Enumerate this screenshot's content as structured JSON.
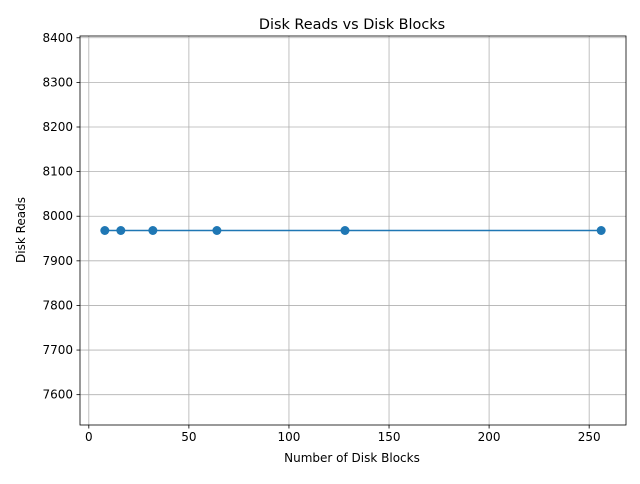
{
  "chart_data": {
    "type": "line",
    "title": "Disk Reads vs Disk Blocks",
    "xlabel": "Number of Disk Blocks",
    "ylabel": "Disk Reads",
    "x": [
      8,
      16,
      32,
      64,
      128,
      256
    ],
    "series": [
      {
        "values": [
          7968,
          7968,
          7968,
          7968,
          7968,
          7968
        ],
        "color": "#1f77b4",
        "marker": "circle"
      }
    ],
    "xlim": [
      -4.4,
      268.4
    ],
    "ylim": [
      7532,
      8404
    ],
    "xticks": [
      0,
      50,
      100,
      150,
      200,
      250
    ],
    "xtick_labels": [
      "0",
      "50",
      "100",
      "150",
      "200",
      "250"
    ],
    "yticks": [
      7600,
      7700,
      7800,
      7900,
      8000,
      8100,
      8200,
      8300,
      8400
    ],
    "ytick_labels": [
      "7600",
      "7700",
      "7800",
      "7900",
      "8000",
      "8100",
      "8200",
      "8300",
      "8400"
    ],
    "grid": true,
    "legend": "none"
  }
}
